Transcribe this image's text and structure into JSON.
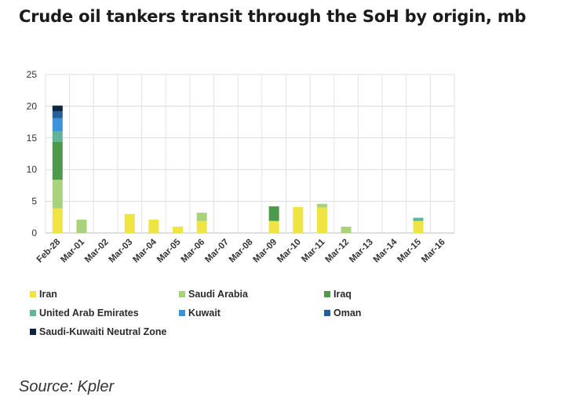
{
  "title": "Crude oil tankers transit through the SoH by origin, mb",
  "source": "Source: Kpler",
  "chart_data": {
    "type": "bar",
    "stacked": true,
    "categories": [
      "Feb-28",
      "Mar-01",
      "Mar-02",
      "Mar-03",
      "Mar-04",
      "Mar-05",
      "Mar-06",
      "Mar-07",
      "Mar-08",
      "Mar-09",
      "Mar-10",
      "Mar-11",
      "Mar-12",
      "Mar-13",
      "Mar-14",
      "Mar-15",
      "Mar-16"
    ],
    "ylim": [
      0,
      25
    ],
    "yticks": [
      0,
      5,
      10,
      15,
      20,
      25
    ],
    "grid": true,
    "legend_position": "bottom",
    "series": [
      {
        "name": "Iran",
        "color": "#f0e442",
        "values": [
          3.9,
          0,
          0,
          3.0,
          2.1,
          1.0,
          1.9,
          0,
          0,
          1.9,
          4.1,
          4.0,
          0,
          0,
          0,
          1.9,
          0
        ]
      },
      {
        "name": "Saudi Arabia",
        "color": "#a9d37a",
        "values": [
          4.5,
          2.1,
          0,
          0,
          0,
          0,
          1.3,
          0,
          0,
          0,
          0,
          0.6,
          1.0,
          0,
          0,
          0,
          0
        ]
      },
      {
        "name": "Iraq",
        "color": "#4e9a4c",
        "values": [
          6.0,
          0,
          0,
          0,
          0,
          0,
          0,
          0,
          0,
          2.3,
          0,
          0,
          0,
          0,
          0,
          0,
          0
        ]
      },
      {
        "name": "United Arab Emirates",
        "color": "#5fb59a",
        "values": [
          1.6,
          0,
          0,
          0,
          0,
          0,
          0,
          0,
          0,
          0,
          0,
          0,
          0,
          0,
          0,
          0.5,
          0
        ]
      },
      {
        "name": "Kuwait",
        "color": "#3a94dd",
        "values": [
          2.1,
          0,
          0,
          0,
          0,
          0,
          0,
          0,
          0,
          0,
          0,
          0,
          0,
          0,
          0,
          0,
          0
        ]
      },
      {
        "name": "Oman",
        "color": "#21609c",
        "values": [
          1.1,
          0,
          0,
          0,
          0,
          0,
          0,
          0,
          0,
          0,
          0,
          0,
          0,
          0,
          0,
          0,
          0
        ]
      },
      {
        "name": "Saudi-Kuwaiti Neutral Zone",
        "color": "#0c2440",
        "values": [
          0.9,
          0,
          0,
          0,
          0,
          0,
          0,
          0,
          0,
          0,
          0,
          0,
          0,
          0,
          0,
          0,
          0
        ]
      }
    ]
  }
}
